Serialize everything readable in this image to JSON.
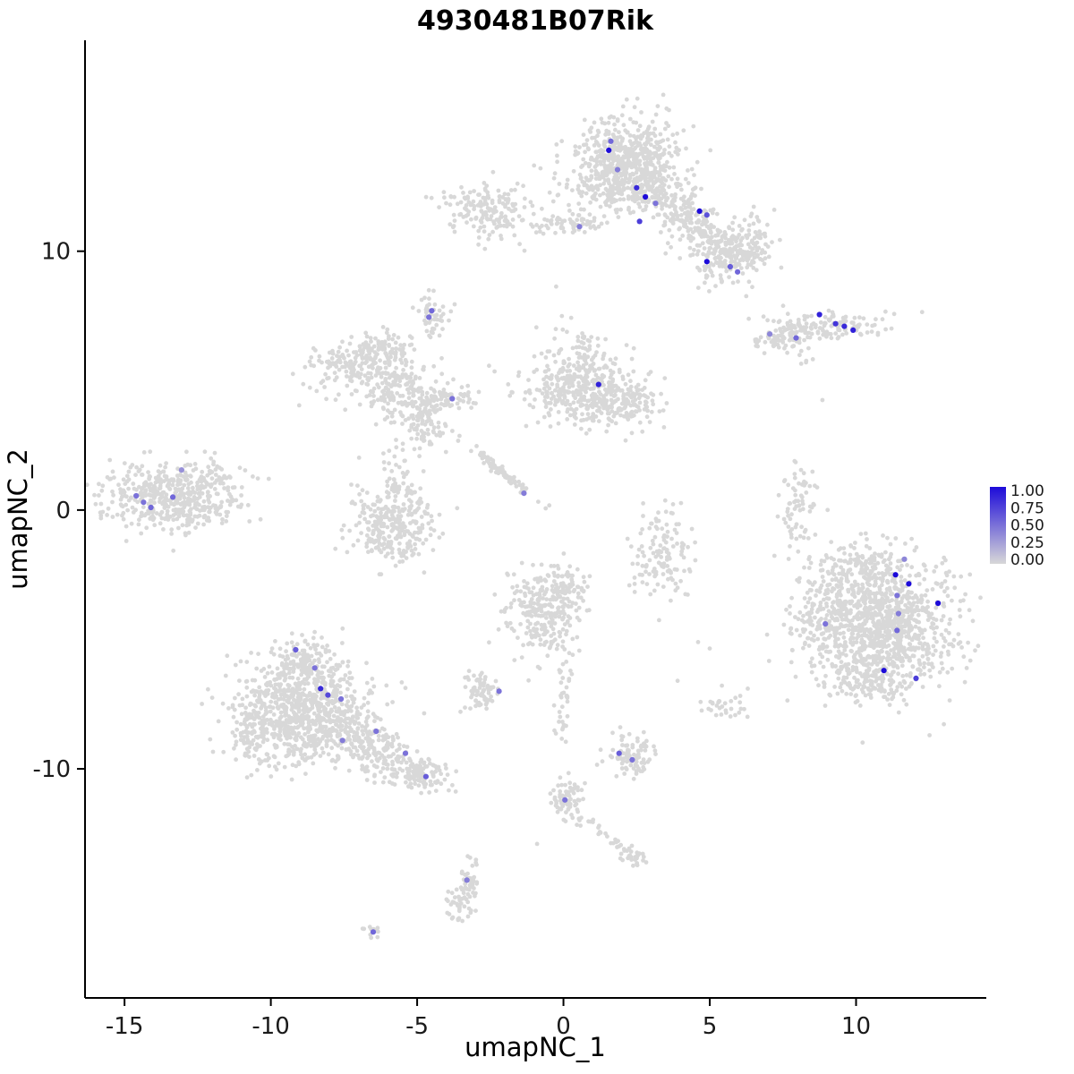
{
  "chart_data": {
    "type": "scatter",
    "title": "4930481B07Rik",
    "xlabel": "umapNC_1",
    "ylabel": "umapNC_2",
    "xlim": [
      -16.35,
      14.45
    ],
    "ylim": [
      -18.85,
      18.15
    ],
    "x_ticks": [
      -15,
      -10,
      -5,
      0,
      5,
      10
    ],
    "y_ticks": [
      -10,
      0,
      10
    ],
    "grid": false,
    "legend_position": "right",
    "point_color_low": "#d8d8d8",
    "point_color_high": "#1d0bd9",
    "cluster_format": [
      "cx",
      "cy",
      "sx",
      "sy",
      "rot_deg",
      "n"
    ],
    "background_clusters": [
      [
        2.2,
        13.6,
        0.85,
        0.8,
        0,
        520
      ],
      [
        2.0,
        12.5,
        1.1,
        0.5,
        0,
        200
      ],
      [
        4.3,
        11.2,
        1.15,
        0.45,
        -40,
        260
      ],
      [
        5.8,
        9.8,
        0.65,
        0.5,
        0,
        170
      ],
      [
        6.6,
        10.6,
        0.4,
        0.4,
        0,
        40
      ],
      [
        -2.6,
        11.7,
        0.75,
        0.55,
        0,
        160
      ],
      [
        0.1,
        11.05,
        0.85,
        0.18,
        3,
        70
      ],
      [
        -4.55,
        7.5,
        0.3,
        0.35,
        0,
        45
      ],
      [
        8.9,
        7.05,
        1.0,
        0.28,
        4,
        160
      ],
      [
        7.3,
        6.6,
        0.5,
        0.2,
        15,
        50
      ],
      [
        8.2,
        6.0,
        0.3,
        0.2,
        0,
        8
      ],
      [
        -6.9,
        5.7,
        1.0,
        0.45,
        15,
        200
      ],
      [
        -5.6,
        4.6,
        0.8,
        0.55,
        -20,
        200
      ],
      [
        -4.7,
        3.4,
        0.45,
        0.6,
        0,
        90
      ],
      [
        -3.9,
        4.35,
        0.5,
        0.18,
        0,
        50
      ],
      [
        -6.2,
        6.3,
        0.5,
        0.3,
        0,
        40
      ],
      [
        0.7,
        4.5,
        0.95,
        0.6,
        0,
        320
      ],
      [
        2.1,
        4.1,
        0.6,
        0.5,
        0,
        110
      ],
      [
        0.6,
        5.6,
        0.8,
        0.4,
        0,
        80
      ],
      [
        0.4,
        6.6,
        0.5,
        0.5,
        0,
        30
      ],
      [
        -1.95,
        1.35,
        0.8,
        0.08,
        -42,
        80
      ],
      [
        -13.7,
        0.5,
        1.0,
        0.6,
        0,
        380
      ],
      [
        -12.1,
        0.9,
        0.7,
        0.6,
        0,
        90
      ],
      [
        -12.5,
        -0.3,
        0.5,
        0.3,
        0,
        40
      ],
      [
        -5.9,
        -0.5,
        0.75,
        0.8,
        0,
        300
      ],
      [
        -5.5,
        1.2,
        0.3,
        0.7,
        0,
        40
      ],
      [
        3.4,
        -1.7,
        0.5,
        0.9,
        0,
        130
      ],
      [
        8.05,
        0.3,
        0.3,
        0.9,
        0,
        70
      ],
      [
        11.0,
        -4.5,
        1.25,
        1.25,
        0,
        950
      ],
      [
        9.0,
        -4.0,
        0.55,
        1.1,
        0,
        170
      ],
      [
        10.3,
        -2.3,
        0.6,
        0.5,
        0,
        120
      ],
      [
        10.4,
        -6.6,
        0.8,
        0.4,
        0,
        120
      ],
      [
        -8.8,
        -7.8,
        1.15,
        1.05,
        0,
        800
      ],
      [
        -6.3,
        -9.4,
        1.0,
        0.45,
        -28,
        220
      ],
      [
        -4.85,
        -10.2,
        0.4,
        0.3,
        0,
        80
      ],
      [
        -8.9,
        -5.9,
        0.6,
        0.5,
        0,
        120
      ],
      [
        -10.4,
        -8.6,
        0.5,
        0.7,
        0,
        100
      ],
      [
        -2.75,
        -7.0,
        0.3,
        0.35,
        0,
        70
      ],
      [
        -0.7,
        -4.0,
        0.65,
        0.85,
        0,
        260
      ],
      [
        0.1,
        -3.0,
        0.4,
        0.4,
        0,
        60
      ],
      [
        2.25,
        -9.5,
        0.45,
        0.4,
        0,
        90
      ],
      [
        0.0,
        -7.3,
        0.15,
        1.0,
        0,
        35
      ],
      [
        0.1,
        -11.25,
        0.3,
        0.4,
        0,
        70
      ],
      [
        1.45,
        -12.55,
        0.85,
        0.1,
        -38,
        30
      ],
      [
        2.45,
        -13.4,
        0.2,
        0.2,
        0,
        25
      ],
      [
        -3.25,
        -14.35,
        0.22,
        0.45,
        0,
        45
      ],
      [
        -3.6,
        -15.4,
        0.25,
        0.35,
        0,
        35
      ],
      [
        -6.45,
        -16.25,
        0.18,
        0.15,
        0,
        12
      ],
      [
        5.6,
        -7.6,
        0.45,
        0.3,
        0,
        30
      ]
    ],
    "extra_points": [
      [
        8.85,
        4.25
      ],
      [
        4.6,
        -5.1
      ],
      [
        5.0,
        -5.35
      ],
      [
        3.9,
        -6.6
      ],
      [
        6.3,
        -6.9
      ],
      [
        -0.9,
        -12.9
      ]
    ],
    "highlight_format": [
      "x",
      "y",
      "expression_0_to_1"
    ],
    "highlight_points": [
      [
        1.62,
        14.25,
        0.55
      ],
      [
        1.55,
        13.9,
        1
      ],
      [
        1.85,
        13.15,
        0.45
      ],
      [
        2.5,
        12.45,
        0.85
      ],
      [
        2.8,
        12.1,
        1
      ],
      [
        3.15,
        11.85,
        0.5
      ],
      [
        2.6,
        11.15,
        0.75
      ],
      [
        4.65,
        11.55,
        1
      ],
      [
        4.9,
        11.4,
        0.65
      ],
      [
        0.55,
        10.95,
        0.45
      ],
      [
        4.9,
        9.6,
        1
      ],
      [
        5.7,
        9.4,
        0.6
      ],
      [
        5.95,
        9.2,
        0.55
      ],
      [
        8.75,
        7.55,
        0.9
      ],
      [
        7.05,
        6.8,
        0.4
      ],
      [
        7.95,
        6.65,
        0.55
      ],
      [
        9.3,
        7.2,
        0.8
      ],
      [
        9.6,
        7.1,
        0.85
      ],
      [
        9.9,
        6.95,
        0.9
      ],
      [
        -4.5,
        7.7,
        0.55
      ],
      [
        -4.6,
        7.45,
        0.5
      ],
      [
        1.2,
        4.85,
        0.9
      ],
      [
        -3.8,
        4.3,
        0.5
      ],
      [
        -1.35,
        0.65,
        0.45
      ],
      [
        -14.6,
        0.55,
        0.5
      ],
      [
        -14.35,
        0.3,
        0.5
      ],
      [
        -14.1,
        0.1,
        0.55
      ],
      [
        -13.35,
        0.5,
        0.55
      ],
      [
        -13.05,
        1.55,
        0.35
      ],
      [
        11.65,
        -1.9,
        0.4
      ],
      [
        11.35,
        -2.5,
        1
      ],
      [
        11.8,
        -2.85,
        1
      ],
      [
        11.4,
        -3.3,
        0.5
      ],
      [
        11.45,
        -4,
        0.45
      ],
      [
        11.4,
        -4.65,
        0.55
      ],
      [
        12.8,
        -3.6,
        1
      ],
      [
        10.95,
        -6.2,
        1
      ],
      [
        12.05,
        -6.5,
        0.75
      ],
      [
        8.95,
        -4.4,
        0.5
      ],
      [
        -9.15,
        -5.4,
        0.6
      ],
      [
        -8.5,
        -6.1,
        0.5
      ],
      [
        -8.3,
        -6.9,
        0.85
      ],
      [
        -8.05,
        -7.15,
        0.7
      ],
      [
        -7.6,
        -7.3,
        0.5
      ],
      [
        -7.55,
        -8.9,
        0.45
      ],
      [
        -6.4,
        -8.55,
        0.5
      ],
      [
        -5.4,
        -9.4,
        0.5
      ],
      [
        -4.7,
        -10.3,
        0.6
      ],
      [
        -2.2,
        -7,
        0.5
      ],
      [
        1.9,
        -9.4,
        0.6
      ],
      [
        2.35,
        -9.65,
        0.5
      ],
      [
        0.05,
        -11.2,
        0.5
      ],
      [
        -3.3,
        -14.3,
        0.45
      ],
      [
        -6.5,
        -16.3,
        0.55
      ]
    ]
  },
  "legend": {
    "labels": [
      "1.00",
      "0.75",
      "0.50",
      "0.25",
      "0.00"
    ]
  }
}
